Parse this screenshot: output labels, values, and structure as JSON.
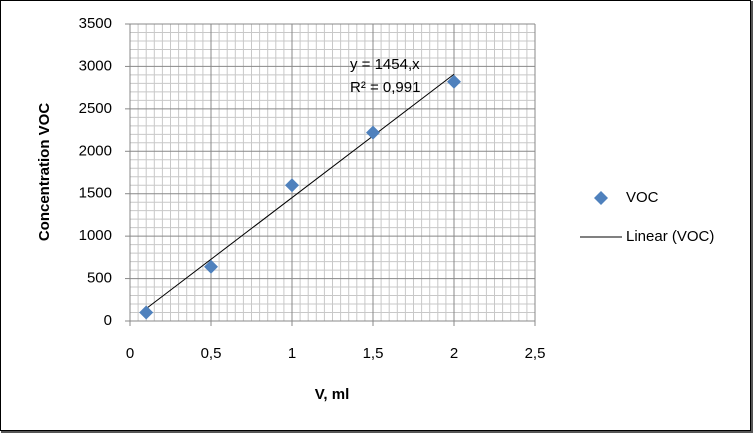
{
  "chart_data": {
    "type": "scatter",
    "x_label": "V, ml",
    "y_label": "Concentration VOC",
    "series": [
      {
        "name": "VOC",
        "color": "#4f81bd",
        "x": [
          0.1,
          0.5,
          1,
          1.5,
          2
        ],
        "values": [
          100,
          640,
          1600,
          2220,
          2820
        ]
      }
    ],
    "trendline": {
      "name": "Linear (VOC)",
      "slope": 1454,
      "equation": "y = 1454,x",
      "r_squared_label": "R² = 0,991",
      "color": "#000000"
    },
    "xlim": [
      0,
      2.5
    ],
    "xticks": [
      0,
      {
        "value": 0.5,
        "label": "0,5"
      },
      1,
      {
        "value": 1.5,
        "label": "1,5"
      },
      2,
      {
        "value": 2.5,
        "label": "2,5"
      }
    ],
    "ylim": [
      0,
      3500
    ],
    "yticks": [
      0,
      500,
      1000,
      1500,
      2000,
      2500,
      3000,
      3500
    ],
    "grid": true,
    "minor_grid": true,
    "legend": "right"
  }
}
